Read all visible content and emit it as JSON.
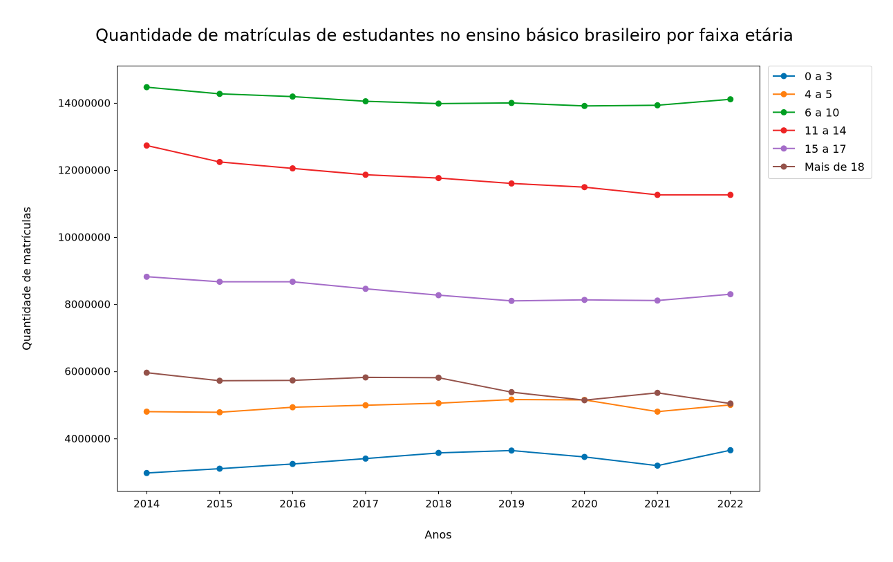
{
  "chart_data": {
    "type": "line",
    "title": "Quantidade de matrículas de estudantes no ensino básico brasileiro por faixa etária",
    "xlabel": "Anos",
    "ylabel": "Quantidade de matrículas",
    "x": [
      2014,
      2015,
      2016,
      2017,
      2018,
      2019,
      2020,
      2021,
      2022
    ],
    "x_ticks": [
      "2014",
      "2015",
      "2016",
      "2017",
      "2018",
      "2019",
      "2020",
      "2021",
      "2022"
    ],
    "y_ticks": [
      4000000,
      6000000,
      8000000,
      10000000,
      12000000,
      14000000
    ],
    "ylim": [
      2450000,
      15100000
    ],
    "xlim": [
      2013.6,
      2022.4
    ],
    "grid": false,
    "legend_position": "outside-top-right",
    "series": [
      {
        "name": "0 a 3",
        "color": "#0072b2",
        "values": [
          2980000,
          3110000,
          3250000,
          3410000,
          3580000,
          3650000,
          3460000,
          3200000,
          3660000
        ]
      },
      {
        "name": "4 a 5",
        "color": "#ff7f0e",
        "values": [
          4810000,
          4790000,
          4940000,
          5000000,
          5060000,
          5170000,
          5160000,
          4810000,
          5010000
        ]
      },
      {
        "name": "6 a 10",
        "color": "#009e21",
        "values": [
          14480000,
          14280000,
          14200000,
          14060000,
          13990000,
          14010000,
          13920000,
          13940000,
          14120000
        ]
      },
      {
        "name": "11 a 14",
        "color": "#ed2324",
        "values": [
          12740000,
          12250000,
          12060000,
          11870000,
          11770000,
          11610000,
          11500000,
          11270000,
          11270000
        ]
      },
      {
        "name": "15 a 17",
        "color": "#a46cc8",
        "values": [
          8830000,
          8680000,
          8680000,
          8470000,
          8280000,
          8110000,
          8140000,
          8120000,
          8310000
        ]
      },
      {
        "name": "Mais de 18",
        "color": "#94524a",
        "values": [
          5970000,
          5730000,
          5740000,
          5830000,
          5820000,
          5390000,
          5150000,
          5370000,
          5050000
        ]
      }
    ]
  }
}
